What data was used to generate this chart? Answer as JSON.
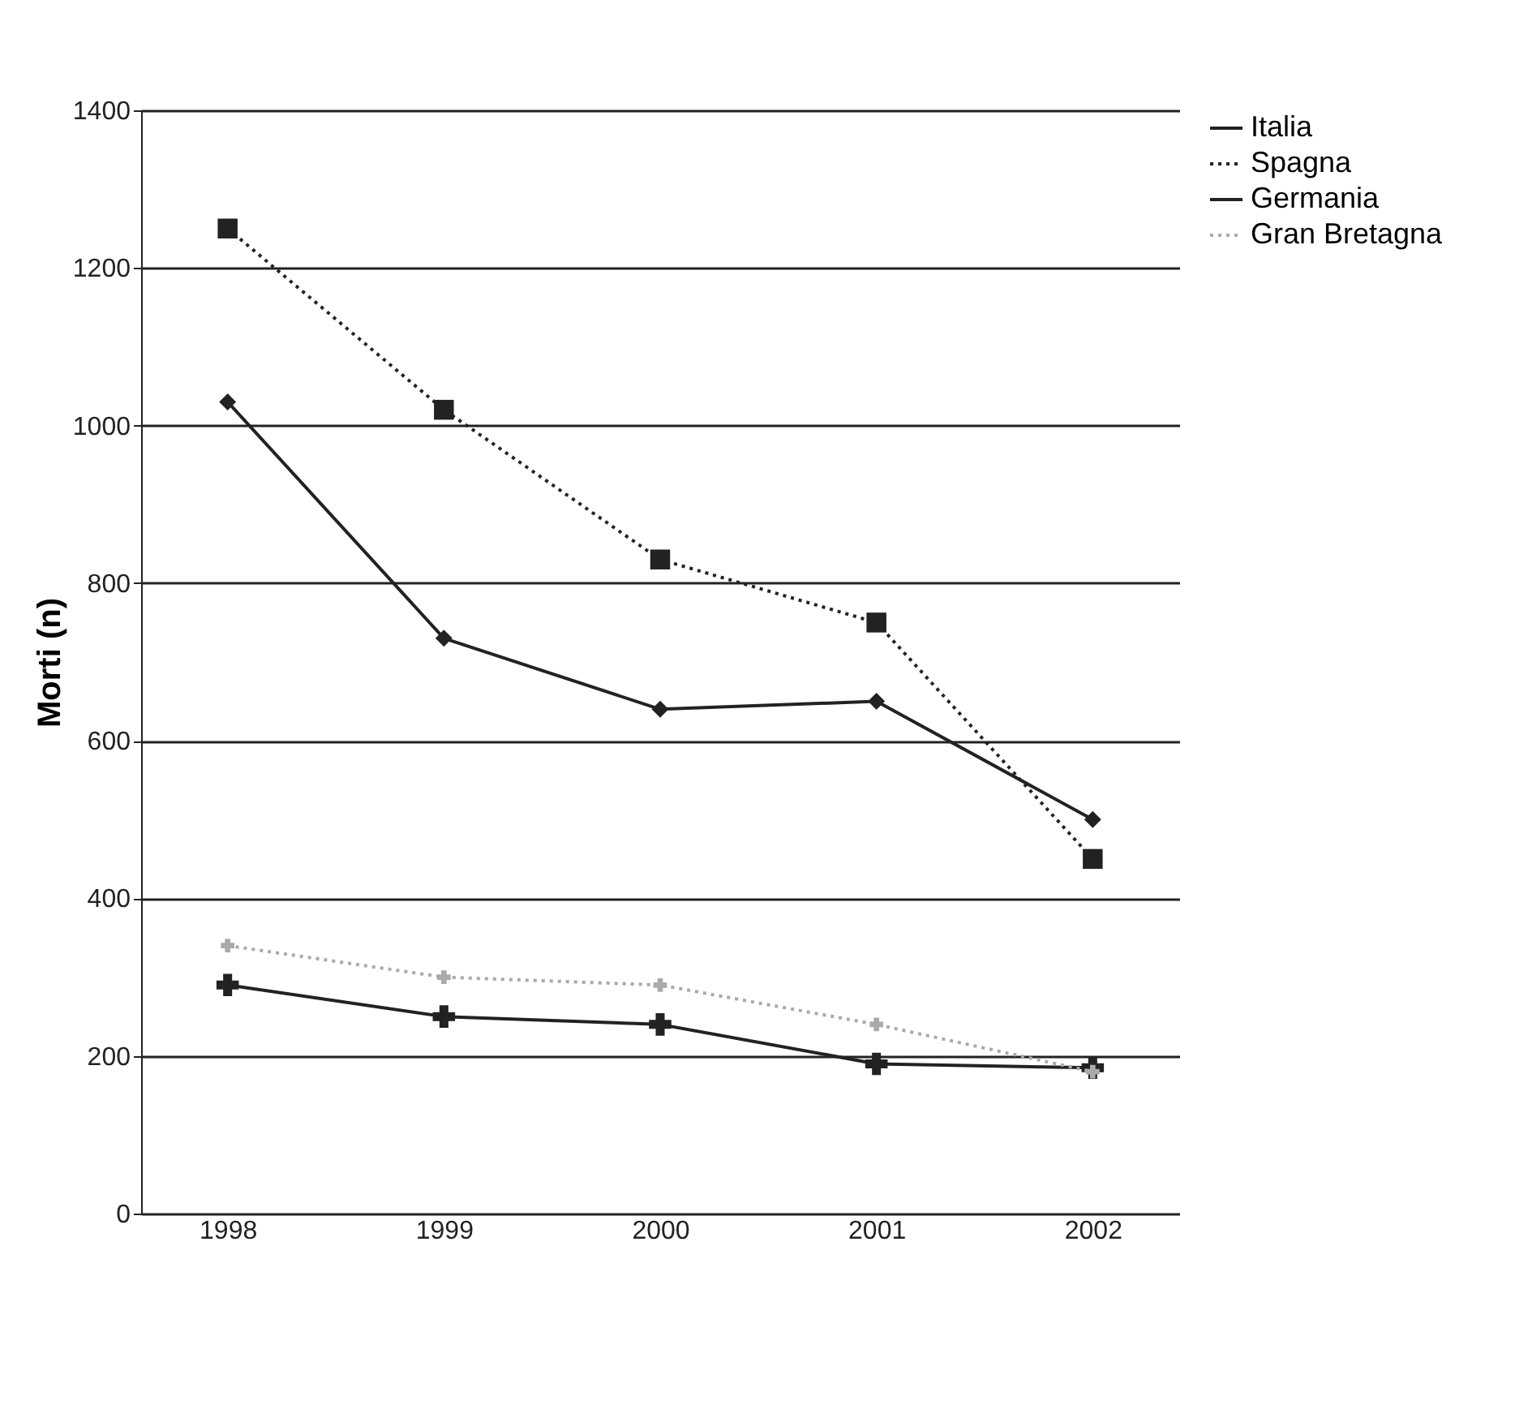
{
  "chart_data": {
    "type": "line",
    "ylabel": "Morti (n)",
    "categories": [
      "1998",
      "1999",
      "2000",
      "2001",
      "2002"
    ],
    "series": [
      {
        "name": "Italia",
        "color": "#222222",
        "values": [
          290,
          250,
          240,
          190,
          185
        ],
        "line_style": "solid",
        "marker": "cross"
      },
      {
        "name": "Spagna",
        "color": "#222222",
        "values": [
          1250,
          1020,
          830,
          750,
          450
        ],
        "line_style": "dotted",
        "marker": "square"
      },
      {
        "name": "Germania",
        "color": "#222222",
        "values": [
          1030,
          730,
          640,
          650,
          500
        ],
        "line_style": "solid",
        "marker": "diamond"
      },
      {
        "name": "Gran Bretagna",
        "color": "#aaaaaa",
        "values": [
          340,
          300,
          290,
          240,
          180
        ],
        "line_style": "dotted",
        "marker": "cross"
      }
    ],
    "ylim": [
      0,
      1400
    ],
    "yticks": [
      0,
      200,
      400,
      600,
      800,
      1000,
      1200,
      1400
    ],
    "grid": "y",
    "legend": "right"
  }
}
